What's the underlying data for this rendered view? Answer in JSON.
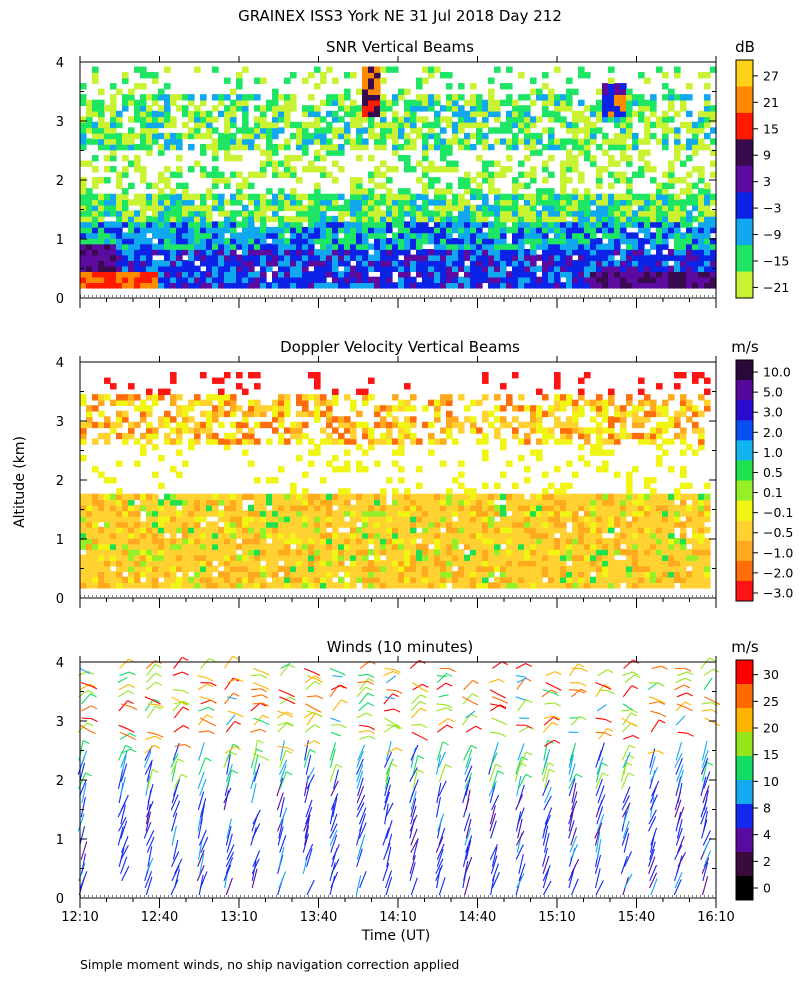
{
  "figure": {
    "title": "GRAINEX ISS3 York NE  31 Jul 2018 Day 212",
    "shared_ylabel": "Altitude (km)",
    "xlabel": "Time (UT)",
    "footnote": "Simple moment winds, no ship navigation correction applied"
  },
  "chart_data": [
    {
      "type": "heatmap",
      "title": "SNR Vertical Beams",
      "colorbar_unit": "dB",
      "ylim": [
        0,
        4
      ],
      "yticks": [
        "0",
        "1",
        "2",
        "3",
        "4"
      ],
      "x_range_hours": [
        12.1667,
        16.1667
      ],
      "colorbar": {
        "labels": [
          "27",
          "21",
          "15",
          "9",
          "3",
          "−3",
          "−9",
          "−15",
          "−21"
        ],
        "colors": [
          "#ffd21a",
          "#ff8a00",
          "#ff1a00",
          "#3a0a4f",
          "#5d0aa0",
          "#0a23e6",
          "#12a8f0",
          "#1ee664",
          "#c8f232"
        ]
      },
      "description_levels": "Strong returns (blue/purple) near 0.2-0.8 km, green/cyan 1-1.7 km, patchy green 2.5-3.3 km, red/orange spots near 3-3.9 km."
    },
    {
      "type": "heatmap",
      "title": "Doppler Velocity Vertical Beams",
      "colorbar_unit": "m/s",
      "ylim": [
        0,
        4
      ],
      "yticks": [
        "0",
        "1",
        "2",
        "3",
        "4"
      ],
      "x_range_hours": [
        12.1667,
        16.1667
      ],
      "colorbar": {
        "labels": [
          "10.0",
          "5.0",
          "3.0",
          "2.0",
          "1.0",
          "0.5",
          "0.1",
          "−0.1",
          "−0.5",
          "−1.0",
          "−2.0",
          "−3.0"
        ],
        "colors": [
          "#2a0a3a",
          "#55089a",
          "#2a0ad0",
          "#0a50f0",
          "#12b4f0",
          "#1ee14b",
          "#96f028",
          "#f0f514",
          "#ffd232",
          "#ffaa1e",
          "#ff6e0a",
          "#ff1414"
        ]
      }
    },
    {
      "type": "scatter",
      "title": "Winds (10 minutes)",
      "colorbar_unit": "m/s",
      "ylim": [
        0,
        4
      ],
      "yticks": [
        "0",
        "1",
        "2",
        "3",
        "4"
      ],
      "xticks": [
        "12:10",
        "12:40",
        "13:10",
        "13:40",
        "14:10",
        "14:40",
        "15:10",
        "15:40",
        "16:10"
      ],
      "x_range_hours": [
        12.1667,
        16.1667
      ],
      "colorbar": {
        "labels": [
          "30",
          "25",
          "20",
          "15",
          "10",
          "8",
          "4",
          "2",
          "0"
        ],
        "colors": [
          "#ff0000",
          "#ff6a00",
          "#ffb400",
          "#96e61e",
          "#14dc64",
          "#14aaf0",
          "#1428f0",
          "#5a0aa0",
          "#3a0a3a",
          "#000000"
        ]
      },
      "profile_times_utc": [
        "12:10",
        "12:25",
        "12:35",
        "12:45",
        "12:55",
        "13:05",
        "13:15",
        "13:25",
        "13:35",
        "13:45",
        "13:55",
        "14:05",
        "14:15",
        "14:25",
        "14:35",
        "14:45",
        "14:55",
        "15:05",
        "15:15",
        "15:25",
        "15:35",
        "15:45",
        "15:55",
        "16:05"
      ]
    }
  ]
}
